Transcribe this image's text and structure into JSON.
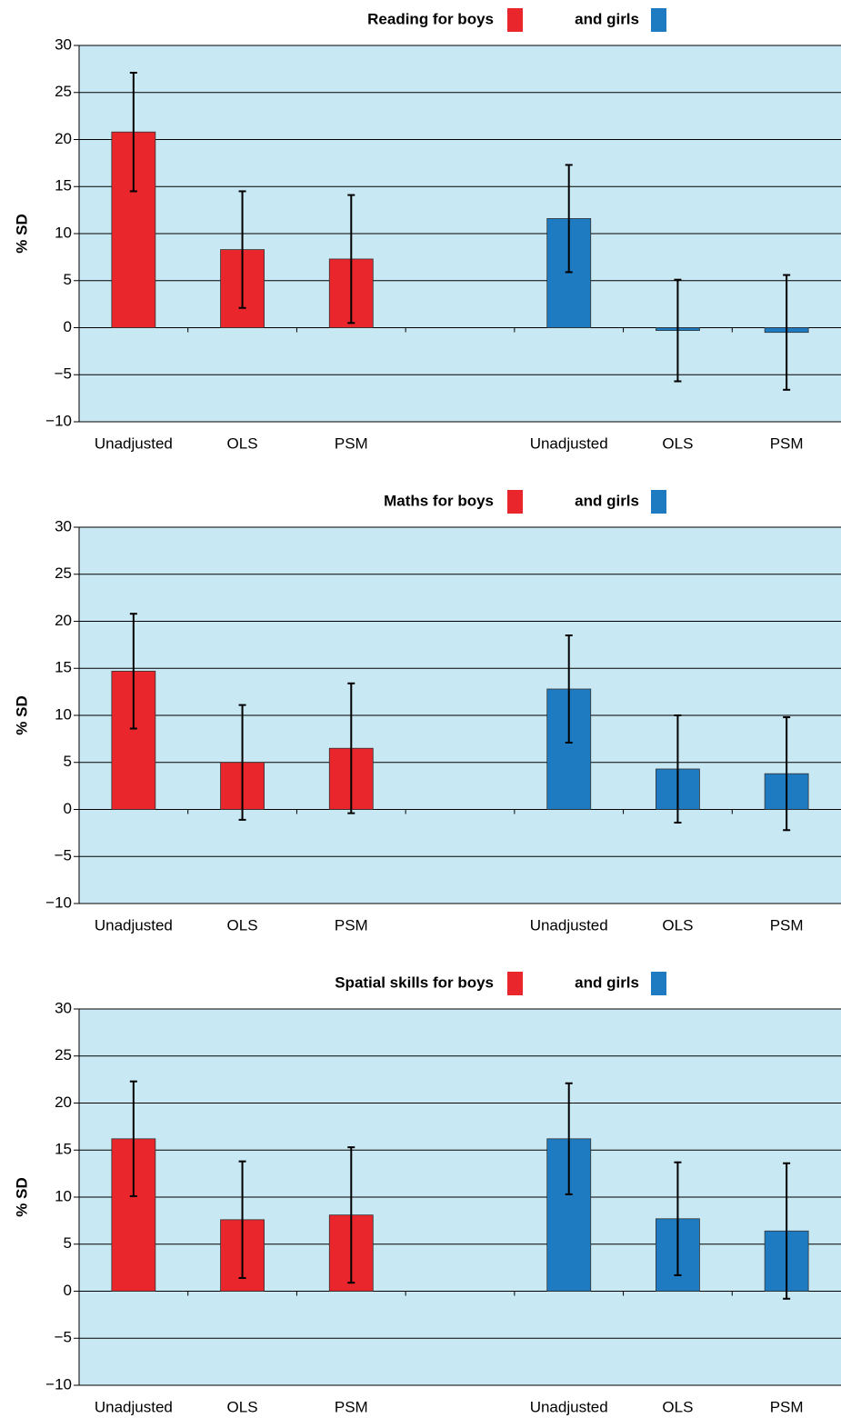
{
  "chart_data": [
    {
      "type": "bar",
      "ylabel": "% SD",
      "categories": [
        "Unadjusted",
        "OLS",
        "PSM",
        null,
        "Unadjusted",
        "OLS",
        "PSM"
      ],
      "series": [
        {
          "name": "Reading for boys",
          "color": "#e8262b",
          "values": [
            20.8,
            8.3,
            7.3,
            null,
            null,
            null,
            null
          ],
          "errors": [
            6.3,
            6.2,
            6.8,
            null,
            null,
            null,
            null
          ]
        },
        {
          "name": "and girls",
          "color": "#1f7bc1",
          "values": [
            null,
            null,
            null,
            null,
            11.6,
            -0.3,
            -0.5
          ],
          "errors": [
            null,
            null,
            null,
            null,
            5.7,
            5.4,
            6.1
          ]
        }
      ],
      "ylim": [
        -10,
        30
      ],
      "yticks": [
        {
          "value": -10,
          "label": "−10"
        },
        {
          "value": -5,
          "label": "−5"
        },
        0,
        5,
        10,
        15,
        20,
        25,
        30
      ],
      "grid": true
    },
    {
      "type": "bar",
      "ylabel": "% SD",
      "categories": [
        "Unadjusted",
        "OLS",
        "PSM",
        null,
        "Unadjusted",
        "OLS",
        "PSM"
      ],
      "series": [
        {
          "name": "Maths for boys",
          "color": "#e8262b",
          "values": [
            14.7,
            5.0,
            6.5,
            null,
            null,
            null,
            null
          ],
          "errors": [
            6.1,
            6.1,
            6.9,
            null,
            null,
            null,
            null
          ]
        },
        {
          "name": "and girls",
          "color": "#1f7bc1",
          "values": [
            null,
            null,
            null,
            null,
            12.8,
            4.3,
            3.8
          ],
          "errors": [
            null,
            null,
            null,
            null,
            5.7,
            5.7,
            6.0
          ]
        }
      ],
      "ylim": [
        -10,
        30
      ],
      "yticks": [
        {
          "value": -10,
          "label": "−10"
        },
        {
          "value": -5,
          "label": "−5"
        },
        0,
        5,
        10,
        15,
        20,
        25,
        30
      ],
      "grid": true
    },
    {
      "type": "bar",
      "ylabel": "% SD",
      "categories": [
        "Unadjusted",
        "OLS",
        "PSM",
        null,
        "Unadjusted",
        "OLS",
        "PSM"
      ],
      "series": [
        {
          "name": "Spatial skills for boys",
          "color": "#e8262b",
          "values": [
            16.2,
            7.6,
            8.1,
            null,
            null,
            null,
            null
          ],
          "errors": [
            6.1,
            6.2,
            7.2,
            null,
            null,
            null,
            null
          ]
        },
        {
          "name": "and girls",
          "color": "#1f7bc1",
          "values": [
            null,
            null,
            null,
            null,
            16.2,
            7.7,
            6.4
          ],
          "errors": [
            null,
            null,
            null,
            null,
            5.9,
            6.0,
            7.2
          ]
        }
      ],
      "ylim": [
        -10,
        30
      ],
      "yticks": [
        {
          "value": -10,
          "label": "−10"
        },
        {
          "value": -5,
          "label": "−5"
        },
        0,
        5,
        10,
        15,
        20,
        25,
        30
      ],
      "grid": true
    }
  ]
}
